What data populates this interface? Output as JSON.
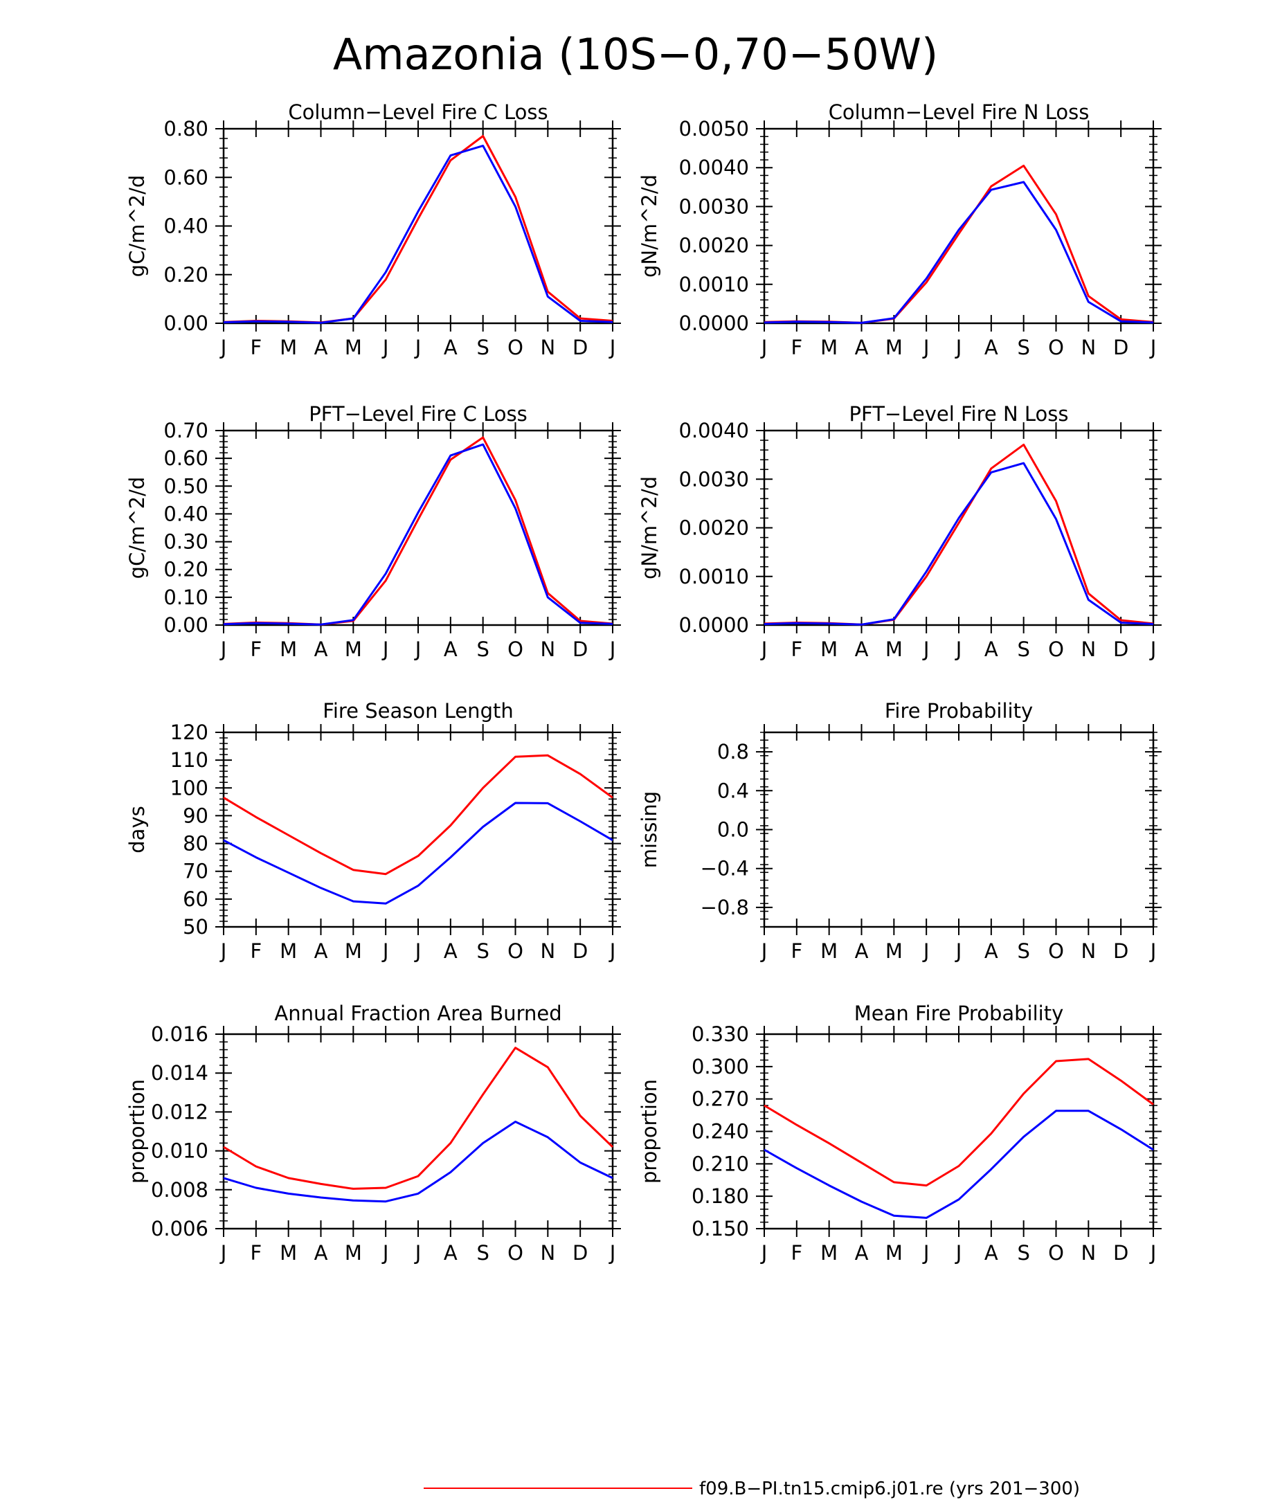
{
  "figure": {
    "title": "Amazonia (10S−0,70−50W)",
    "legend": [
      {
        "label": "f09.B−PI.tn15.cmip6.j01.re (yrs 201−300)",
        "color": "#ff0000"
      }
    ]
  },
  "colors": {
    "series_red": "#ff0000",
    "series_blue": "#0000ff",
    "axis": "#000000"
  },
  "chart_data": [
    {
      "type": "line",
      "title": "Column−Level Fire C Loss",
      "xlabel": "",
      "ylabel": "gC/m^2/d",
      "categories": [
        "J",
        "F",
        "M",
        "A",
        "M",
        "J",
        "J",
        "A",
        "S",
        "O",
        "N",
        "D",
        "J"
      ],
      "ylim": [
        0,
        0.8
      ],
      "yticks": [
        "0.00",
        "0.20",
        "0.40",
        "0.60",
        "0.80"
      ],
      "ytick_values": [
        0,
        0.2,
        0.4,
        0.6,
        0.8
      ],
      "series": [
        {
          "color": "#ff0000",
          "values": [
            0.005,
            0.01,
            0.008,
            0.003,
            0.02,
            0.18,
            0.43,
            0.67,
            0.77,
            0.52,
            0.13,
            0.02,
            0.01
          ]
        },
        {
          "color": "#0000ff",
          "values": [
            0.004,
            0.008,
            0.006,
            0.002,
            0.02,
            0.21,
            0.46,
            0.69,
            0.73,
            0.48,
            0.11,
            0.01,
            0.005
          ]
        }
      ]
    },
    {
      "type": "line",
      "title": "Column−Level Fire N Loss",
      "xlabel": "",
      "ylabel": "gN/m^2/d",
      "categories": [
        "J",
        "F",
        "M",
        "A",
        "M",
        "J",
        "J",
        "A",
        "S",
        "O",
        "N",
        "D",
        "J"
      ],
      "ylim": [
        0,
        0.005
      ],
      "yticks": [
        "0.0000",
        "0.0010",
        "0.0020",
        "0.0030",
        "0.0040",
        "0.0050"
      ],
      "ytick_values": [
        0,
        0.001,
        0.002,
        0.003,
        0.004,
        0.005
      ],
      "series": [
        {
          "color": "#ff0000",
          "values": [
            3e-05,
            5e-05,
            4e-05,
            1e-05,
            0.00012,
            0.00105,
            0.0023,
            0.00352,
            0.00405,
            0.0028,
            0.0007,
            0.0001,
            3e-05
          ]
        },
        {
          "color": "#0000ff",
          "values": [
            2e-05,
            4e-05,
            3e-05,
            1e-05,
            0.00013,
            0.00115,
            0.0024,
            0.00343,
            0.00363,
            0.0024,
            0.00055,
            5e-05,
            2e-05
          ]
        }
      ]
    },
    {
      "type": "line",
      "title": "PFT−Level Fire C Loss",
      "xlabel": "",
      "ylabel": "gC/m^2/d",
      "categories": [
        "J",
        "F",
        "M",
        "A",
        "M",
        "J",
        "J",
        "A",
        "S",
        "O",
        "N",
        "D",
        "J"
      ],
      "ylim": [
        0,
        0.7
      ],
      "yticks": [
        "0.00",
        "0.10",
        "0.20",
        "0.30",
        "0.40",
        "0.50",
        "0.60",
        "0.70"
      ],
      "ytick_values": [
        0,
        0.1,
        0.2,
        0.3,
        0.4,
        0.5,
        0.6,
        0.7
      ],
      "series": [
        {
          "color": "#ff0000",
          "values": [
            0.004,
            0.009,
            0.007,
            0.002,
            0.015,
            0.16,
            0.38,
            0.595,
            0.675,
            0.45,
            0.115,
            0.015,
            0.005
          ]
        },
        {
          "color": "#0000ff",
          "values": [
            0.003,
            0.007,
            0.005,
            0.002,
            0.018,
            0.185,
            0.405,
            0.61,
            0.65,
            0.42,
            0.1,
            0.008,
            0.004
          ]
        }
      ]
    },
    {
      "type": "line",
      "title": "PFT−Level Fire N Loss",
      "xlabel": "",
      "ylabel": "gN/m^2/d",
      "categories": [
        "J",
        "F",
        "M",
        "A",
        "M",
        "J",
        "J",
        "A",
        "S",
        "O",
        "N",
        "D",
        "J"
      ],
      "ylim": [
        0,
        0.004
      ],
      "yticks": [
        "0.0000",
        "0.0010",
        "0.0020",
        "0.0030",
        "0.0040"
      ],
      "ytick_values": [
        0,
        0.001,
        0.002,
        0.003,
        0.004
      ],
      "series": [
        {
          "color": "#ff0000",
          "values": [
            3e-05,
            5e-05,
            4e-05,
            1e-05,
            0.00011,
            0.001,
            0.0021,
            0.00322,
            0.00371,
            0.00255,
            0.00065,
            0.0001,
            3e-05
          ]
        },
        {
          "color": "#0000ff",
          "values": [
            2e-05,
            4e-05,
            3e-05,
            1e-05,
            0.00012,
            0.0011,
            0.0022,
            0.00314,
            0.00333,
            0.00218,
            0.00052,
            5e-05,
            2e-05
          ]
        }
      ]
    },
    {
      "type": "line",
      "title": "Fire Season Length",
      "xlabel": "",
      "ylabel": "days",
      "categories": [
        "J",
        "F",
        "M",
        "A",
        "M",
        "J",
        "J",
        "A",
        "S",
        "O",
        "N",
        "D",
        "J"
      ],
      "ylim": [
        50,
        120
      ],
      "yticks": [
        "50",
        "60",
        "70",
        "80",
        "90",
        "100",
        "110",
        "120"
      ],
      "ytick_values": [
        50,
        60,
        70,
        80,
        90,
        100,
        110,
        120
      ],
      "series": [
        {
          "color": "#ff0000",
          "values": [
            96.5,
            89.5,
            83,
            76.5,
            70.5,
            69,
            75.5,
            86.5,
            100,
            111.2,
            111.7,
            105,
            96.5
          ]
        },
        {
          "color": "#0000ff",
          "values": [
            81.2,
            75,
            69.5,
            64,
            59.2,
            58.4,
            64.8,
            75,
            86,
            94.6,
            94.5,
            88,
            81.2
          ]
        }
      ]
    },
    {
      "type": "line",
      "title": "Fire Probability",
      "xlabel": "",
      "ylabel": "missing",
      "categories": [
        "J",
        "F",
        "M",
        "A",
        "M",
        "J",
        "J",
        "A",
        "S",
        "O",
        "N",
        "D",
        "J"
      ],
      "ylim": [
        -1,
        1
      ],
      "yticks": [
        "−0.8",
        "−0.4",
        "0.0",
        "0.4",
        "0.8"
      ],
      "ytick_values": [
        -0.8,
        -0.4,
        0,
        0.4,
        0.8
      ],
      "series": []
    },
    {
      "type": "line",
      "title": "Annual Fraction Area Burned",
      "xlabel": "",
      "ylabel": "proportion",
      "categories": [
        "J",
        "F",
        "M",
        "A",
        "M",
        "J",
        "J",
        "A",
        "S",
        "O",
        "N",
        "D",
        "J"
      ],
      "ylim": [
        0.006,
        0.016
      ],
      "yticks": [
        "0.006",
        "0.008",
        "0.010",
        "0.012",
        "0.014",
        "0.016"
      ],
      "ytick_values": [
        0.006,
        0.008,
        0.01,
        0.012,
        0.014,
        0.016
      ],
      "series": [
        {
          "color": "#ff0000",
          "values": [
            0.0102,
            0.0092,
            0.0086,
            0.0083,
            0.00805,
            0.0081,
            0.0087,
            0.0104,
            0.0129,
            0.0153,
            0.0143,
            0.0118,
            0.0102
          ]
        },
        {
          "color": "#0000ff",
          "values": [
            0.0086,
            0.0081,
            0.0078,
            0.0076,
            0.00745,
            0.0074,
            0.0078,
            0.0089,
            0.0104,
            0.0115,
            0.0107,
            0.0094,
            0.0086
          ]
        }
      ]
    },
    {
      "type": "line",
      "title": "Mean Fire Probability",
      "xlabel": "",
      "ylabel": "proportion",
      "categories": [
        "J",
        "F",
        "M",
        "A",
        "M",
        "J",
        "J",
        "A",
        "S",
        "O",
        "N",
        "D",
        "J"
      ],
      "ylim": [
        0.15,
        0.33
      ],
      "yticks": [
        "0.150",
        "0.180",
        "0.210",
        "0.240",
        "0.270",
        "0.300",
        "0.330"
      ],
      "ytick_values": [
        0.15,
        0.18,
        0.21,
        0.24,
        0.27,
        0.3,
        0.33
      ],
      "series": [
        {
          "color": "#ff0000",
          "values": [
            0.264,
            0.246,
            0.229,
            0.211,
            0.193,
            0.19,
            0.208,
            0.238,
            0.275,
            0.305,
            0.307,
            0.287,
            0.265
          ]
        },
        {
          "color": "#0000ff",
          "values": [
            0.223,
            0.206,
            0.19,
            0.175,
            0.162,
            0.16,
            0.177,
            0.205,
            0.235,
            0.259,
            0.259,
            0.242,
            0.223
          ]
        }
      ]
    }
  ]
}
